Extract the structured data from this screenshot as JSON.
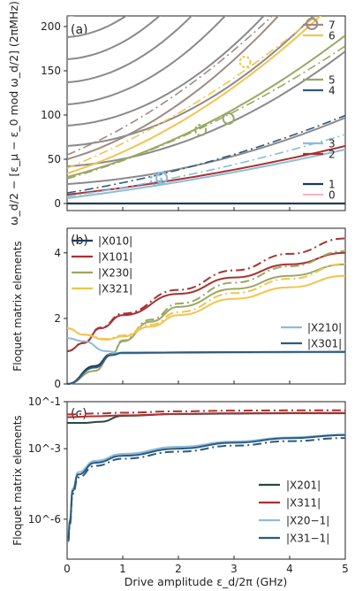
{
  "figure": {
    "xlabel": "Drive amplitude ε_d/2π (GHz)",
    "x_ticks": [
      "0",
      "1",
      "2",
      "3",
      "4",
      "5"
    ]
  },
  "chart_data": [
    {
      "type": "line",
      "panel_label": "(a)",
      "ylabel": "ω_d/2 − [ε_μ − ε_0 mod ω_d/2] (2πMHz)",
      "xlim": [
        0,
        5
      ],
      "ylim": [
        -8,
        212
      ],
      "y_ticks": [
        "0",
        "50",
        "100",
        "150",
        "200"
      ],
      "legend": [
        "7",
        "6",
        "5",
        "4",
        "3",
        "2",
        "1",
        "0"
      ],
      "colors": {
        "7": "#9e8c84",
        "6": "#f2c34f",
        "5": "#9aa863",
        "4": "#2c5a80",
        "3": "#8cbcd8",
        "2": "#a83232",
        "1": "#1e3a56",
        "0": "#f1b7c0",
        "gray": "#8a8a8a"
      },
      "gray_ladder_offsets": [
        22,
        42,
        65,
        88,
        112,
        137,
        163,
        188,
        212
      ]
    },
    {
      "type": "line",
      "panel_label": "(b)",
      "ylabel": "Floquet matrix elements",
      "xlim": [
        0,
        5
      ],
      "ylim": [
        0,
        4.75
      ],
      "y_ticks": [
        "0",
        "2",
        "4"
      ],
      "series": [
        {
          "name": "|X010|",
          "color": "#1e3a56",
          "x": [
            0,
            0.5,
            0.8,
            1.0,
            2,
            3,
            4,
            5
          ],
          "y": [
            0,
            0.55,
            0.92,
            0.95,
            0.96,
            0.97,
            0.97,
            0.98
          ]
        },
        {
          "name": "|X101|",
          "color": "#a83232",
          "x": [
            0,
            0.3,
            0.6,
            1,
            2,
            3,
            4,
            5
          ],
          "y": [
            1.0,
            1.25,
            1.7,
            2.1,
            2.75,
            3.25,
            3.65,
            4.0
          ]
        },
        {
          "name": "|X230|",
          "color": "#9aa863",
          "x": [
            0,
            0.5,
            0.8,
            1,
            1.5,
            2,
            3,
            4,
            5
          ],
          "y": [
            0,
            0.4,
            0.9,
            1.3,
            1.9,
            2.35,
            2.9,
            3.3,
            3.65
          ]
        },
        {
          "name": "|X321|",
          "color": "#f2c34f",
          "x": [
            0,
            0.3,
            0.7,
            1,
            1.5,
            2,
            3,
            4,
            5
          ],
          "y": [
            1.7,
            1.5,
            1.35,
            1.45,
            1.75,
            2.1,
            2.6,
            2.95,
            3.3
          ]
        },
        {
          "name": "|X210|",
          "color": "#8cbcd8",
          "x": [
            0,
            0.3,
            0.7,
            1.0,
            2,
            3,
            4,
            5
          ],
          "y": [
            1.4,
            1.3,
            1.0,
            0.93,
            0.95,
            0.96,
            0.97,
            0.97
          ]
        },
        {
          "name": "|X301|",
          "color": "#2c5a80",
          "x": [
            0,
            0.5,
            0.8,
            1.0,
            2,
            3,
            4,
            5
          ],
          "y": [
            0,
            0.5,
            0.88,
            0.95,
            0.96,
            0.97,
            0.98,
            0.98
          ]
        }
      ]
    },
    {
      "type": "line",
      "panel_label": "(c)",
      "ylabel": "Floquet matrix elements",
      "yscale": "log",
      "xlim": [
        0,
        5
      ],
      "ylim": [
        2e-08,
        0.1
      ],
      "y_ticks": [
        "10^-1",
        "10^-3",
        "10^-6"
      ],
      "series": [
        {
          "name": "|X201|",
          "color": "#2a4742",
          "x": [
            0,
            0.3,
            0.6,
            1,
            2,
            3,
            4,
            5
          ],
          "y": [
            0.0125,
            0.0125,
            0.014,
            0.025,
            0.03,
            0.031,
            0.032,
            0.032
          ]
        },
        {
          "name": "|X311|",
          "color": "#a83232",
          "x": [
            0,
            0.5,
            1,
            2,
            3,
            4,
            5
          ],
          "y": [
            0.022,
            0.024,
            0.026,
            0.03,
            0.032,
            0.033,
            0.033
          ]
        },
        {
          "name": "|X20−1|",
          "color": "#8cbcd8",
          "x": [
            0.02,
            0.05,
            0.1,
            0.2,
            0.5,
            1,
            2,
            3,
            4,
            5
          ],
          "y": [
            2e-07,
            1e-06,
            2e-05,
            0.0001,
            0.0003,
            0.0006,
            0.0012,
            0.002,
            0.003,
            0.004
          ]
        },
        {
          "name": "|X31−1|",
          "color": "#2c5a80",
          "x": [
            0.02,
            0.05,
            0.1,
            0.2,
            0.5,
            1,
            2,
            3,
            4,
            5
          ],
          "y": [
            1.5e-07,
            8e-07,
            1.6e-05,
            8e-05,
            0.00025,
            0.0005,
            0.001,
            0.0018,
            0.0028,
            0.0038
          ]
        }
      ]
    }
  ]
}
